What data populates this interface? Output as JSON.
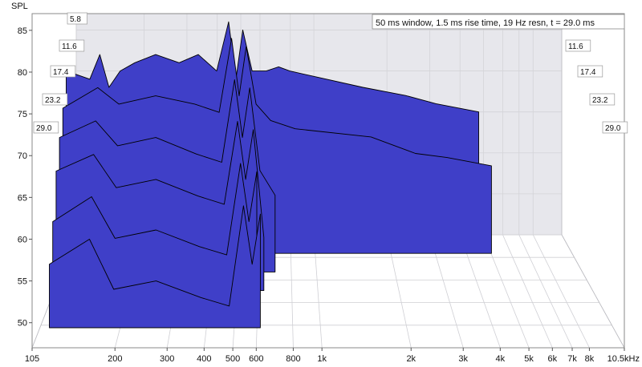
{
  "chart_data": {
    "type": "area",
    "subtype": "waterfall-3d",
    "title": "50 ms window, 1.5 ms rise time,  19 Hz resn, t = 29.0 ms",
    "ylabel": "SPL",
    "xlabel": "",
    "x_unit": "Hz",
    "x_scale": "log",
    "xlim": [
      105,
      10500
    ],
    "ylim": [
      47,
      87
    ],
    "x_ticks": [
      {
        "v": 105,
        "label": "105"
      },
      {
        "v": 200,
        "label": "200"
      },
      {
        "v": 300,
        "label": "300"
      },
      {
        "v": 400,
        "label": "400"
      },
      {
        "v": 500,
        "label": "500"
      },
      {
        "v": 600,
        "label": "600"
      },
      {
        "v": 800,
        "label": "800"
      },
      {
        "v": 1000,
        "label": "1k"
      },
      {
        "v": 2000,
        "label": "2k"
      },
      {
        "v": 3000,
        "label": "3k"
      },
      {
        "v": 4000,
        "label": "4k"
      },
      {
        "v": 5000,
        "label": "5k"
      },
      {
        "v": 6000,
        "label": "6k"
      },
      {
        "v": 7000,
        "label": "7k"
      },
      {
        "v": 8000,
        "label": "8k"
      },
      {
        "v": 10500,
        "label": "10.5kHz"
      }
    ],
    "y_ticks": [
      50,
      55,
      60,
      65,
      70,
      75,
      80,
      85
    ],
    "time_ticks_ms": [
      {
        "v": 5.8,
        "label": "5.8"
      },
      {
        "v": 11.6,
        "label": "11.6"
      },
      {
        "v": 17.4,
        "label": "17.4"
      },
      {
        "v": 23.2,
        "label": "23.2"
      },
      {
        "v": 29.0,
        "label": "29.0"
      }
    ],
    "grid": true,
    "fill_color": "#3f3fc8",
    "outline_color": "#000000",
    "series": [
      {
        "t_ms": 0.0,
        "x": [
          120,
          150,
          165,
          180,
          200,
          230,
          280,
          350,
          420,
          500,
          560,
          600,
          640,
          700,
          800,
          900,
          1000,
          2000,
          3000,
          4000,
          6000
        ],
        "y": [
          80,
          79,
          82,
          78,
          80,
          81,
          82,
          81,
          82,
          80,
          86,
          79,
          85,
          80,
          80,
          80.5,
          80,
          78,
          77,
          76,
          75
        ]
      },
      {
        "t_ms": 5.8,
        "x": [
          120,
          165,
          200,
          280,
          400,
          500,
          560,
          600,
          640,
          700,
          800,
          1000,
          2000,
          3000,
          4000,
          6000
        ],
        "y": [
          75.5,
          78,
          76,
          77,
          76,
          75,
          84,
          77,
          83,
          76,
          74,
          73,
          72,
          70,
          69.5,
          68.5
        ]
      },
      {
        "t_ms": 11.6,
        "x": [
          120,
          165,
          200,
          280,
          400,
          500,
          560,
          600,
          640,
          700,
          800
        ],
        "y": [
          72,
          74,
          71,
          72,
          70,
          69,
          79,
          72,
          78,
          68,
          65
        ]
      },
      {
        "t_ms": 17.4,
        "x": [
          120,
          165,
          200,
          280,
          400,
          500,
          560,
          600,
          640,
          700
        ],
        "y": [
          68,
          70,
          66,
          67,
          65,
          64,
          74,
          67,
          73,
          60
        ]
      },
      {
        "t_ms": 23.2,
        "x": [
          120,
          165,
          200,
          280,
          400,
          500,
          560,
          600,
          640
        ],
        "y": [
          62,
          65,
          60,
          61,
          59,
          58,
          69,
          62,
          68
        ]
      },
      {
        "t_ms": 29.0,
        "x": [
          120,
          165,
          200,
          280,
          400,
          500,
          560,
          600,
          640
        ],
        "y": [
          57,
          60,
          54,
          55,
          53,
          52,
          64,
          57,
          63
        ]
      }
    ]
  }
}
